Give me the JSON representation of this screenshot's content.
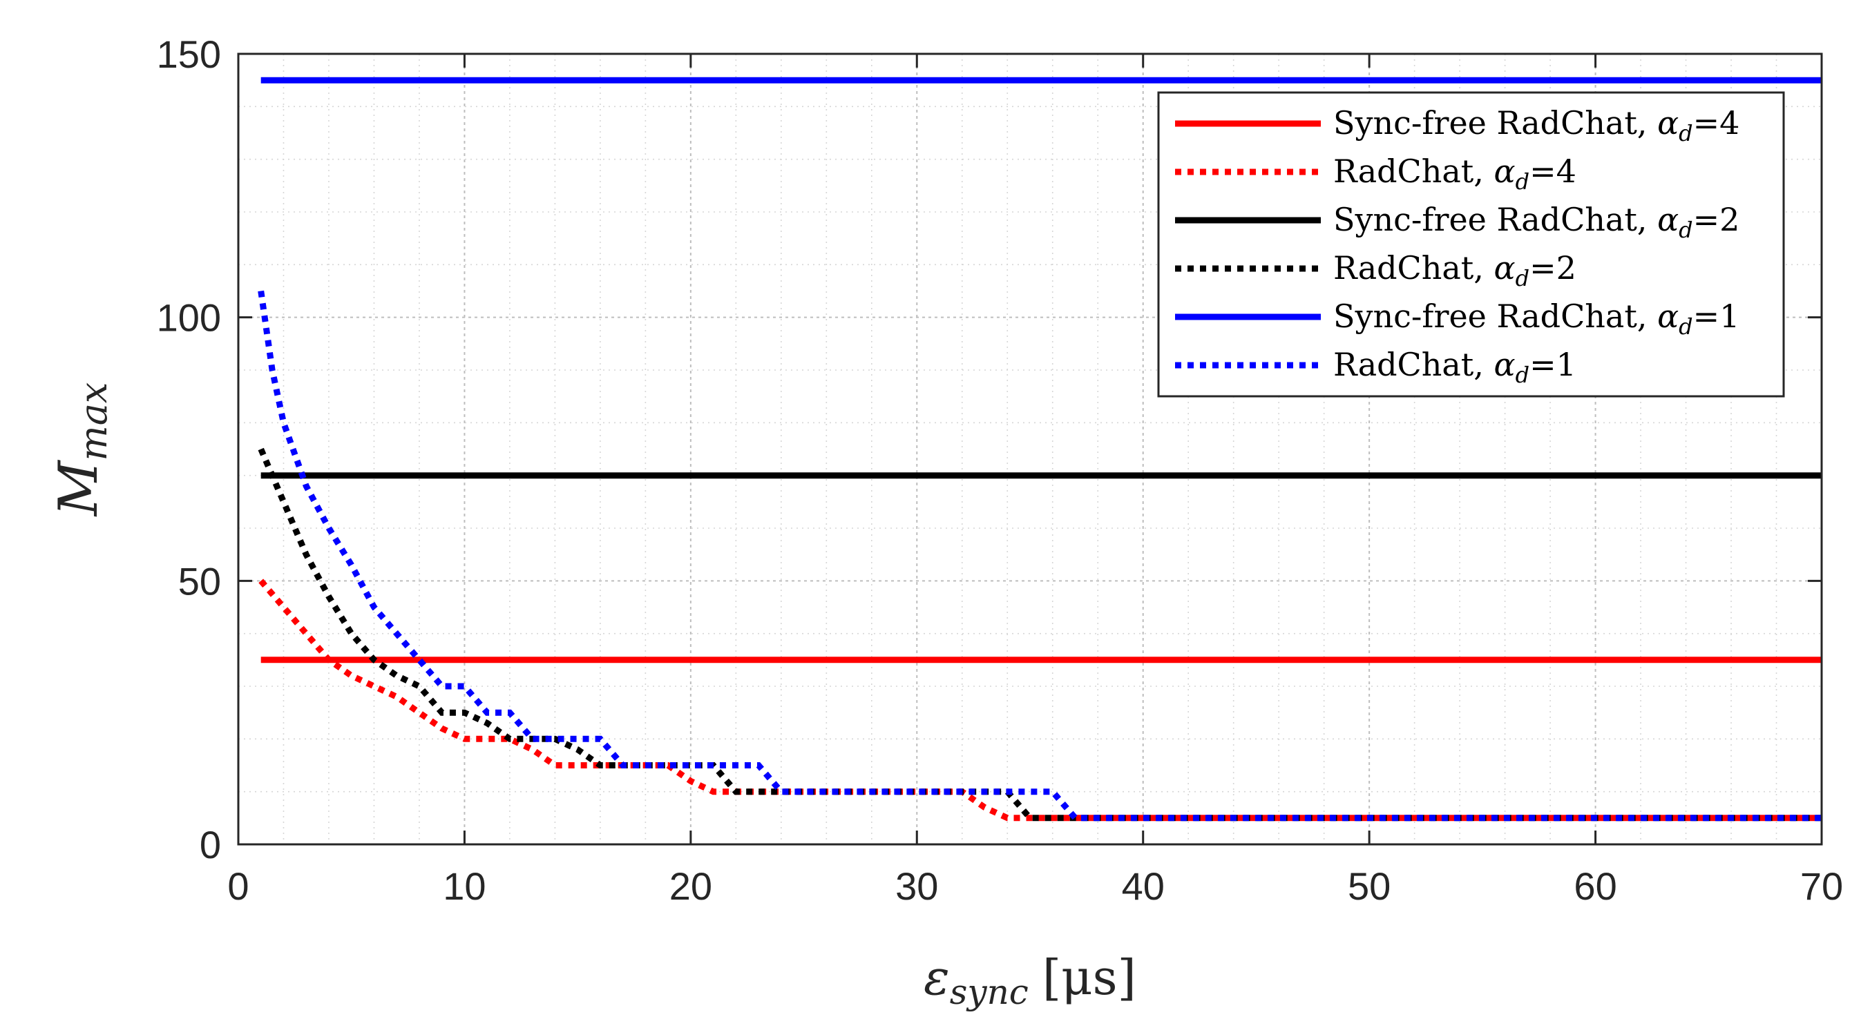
{
  "chart_data": {
    "type": "line",
    "title": "",
    "xlabel": {
      "main": "ε",
      "sub": "sync",
      "unit": "[μs]"
    },
    "ylabel": {
      "main": "M",
      "sub": "max"
    },
    "xlim": [
      0,
      70
    ],
    "ylim": [
      0,
      150
    ],
    "xticks": [
      0,
      10,
      20,
      30,
      40,
      50,
      60,
      70
    ],
    "yticks": [
      0,
      50,
      100,
      150
    ],
    "grid": true,
    "minor_grid": true,
    "legend_position": "top-right",
    "series": [
      {
        "name": "Sync-free RadChat, αd=4",
        "label_main": "Sync-free RadChat, ",
        "label_sym": "α",
        "label_sub": "d",
        "label_eq": "=4",
        "color": "#ff0000",
        "style": "solid",
        "x": [
          1,
          70
        ],
        "y": [
          35,
          35
        ]
      },
      {
        "name": "RadChat, αd=4",
        "label_main": "RadChat, ",
        "label_sym": "α",
        "label_sub": "d",
        "label_eq": "=4",
        "color": "#ff0000",
        "style": "dotted",
        "x": [
          1,
          2,
          3,
          4,
          5,
          6,
          7,
          8,
          9,
          10,
          11,
          12,
          13,
          14,
          15,
          16,
          17,
          18,
          19,
          20,
          21,
          22,
          23,
          24,
          25,
          26,
          27,
          28,
          29,
          30,
          31,
          32,
          33,
          34,
          35,
          36,
          37,
          38,
          40,
          45,
          50,
          55,
          60,
          65,
          70
        ],
        "y": [
          50,
          45,
          40,
          35,
          32,
          30,
          28,
          25,
          22,
          20,
          20,
          20,
          18,
          15,
          15,
          15,
          15,
          15,
          15,
          12,
          10,
          10,
          10,
          10,
          10,
          10,
          10,
          10,
          10,
          10,
          10,
          10,
          7,
          5,
          5,
          5,
          5,
          5,
          5,
          5,
          5,
          5,
          5,
          5,
          5
        ]
      },
      {
        "name": "Sync-free RadChat, αd=2",
        "label_main": "Sync-free RadChat, ",
        "label_sym": "α",
        "label_sub": "d",
        "label_eq": "=2",
        "color": "#000000",
        "style": "solid",
        "x": [
          1,
          70
        ],
        "y": [
          70,
          70
        ]
      },
      {
        "name": "RadChat, αd=2",
        "label_main": "RadChat, ",
        "label_sym": "α",
        "label_sub": "d",
        "label_eq": "=2",
        "color": "#000000",
        "style": "dotted",
        "x": [
          1,
          2,
          3,
          4,
          5,
          6,
          7,
          8,
          9,
          10,
          11,
          12,
          13,
          14,
          15,
          16,
          17,
          18,
          19,
          20,
          21,
          22,
          23,
          24,
          25,
          26,
          27,
          28,
          29,
          30,
          31,
          32,
          33,
          34,
          35,
          36,
          37,
          38,
          40,
          45,
          50,
          55,
          60,
          65,
          70
        ],
        "y": [
          75,
          65,
          55,
          47,
          40,
          35,
          32,
          30,
          25,
          25,
          23,
          20,
          20,
          20,
          18,
          15,
          15,
          15,
          15,
          15,
          15,
          10,
          10,
          10,
          10,
          10,
          10,
          10,
          10,
          10,
          10,
          10,
          10,
          10,
          5,
          5,
          5,
          5,
          5,
          5,
          5,
          5,
          5,
          5,
          5
        ]
      },
      {
        "name": "Sync-free RadChat, αd=1",
        "label_main": "Sync-free RadChat, ",
        "label_sym": "α",
        "label_sub": "d",
        "label_eq": "=1",
        "color": "#0000ff",
        "style": "solid",
        "x": [
          1,
          70
        ],
        "y": [
          145,
          145
        ]
      },
      {
        "name": "RadChat, αd=1",
        "label_main": "RadChat, ",
        "label_sym": "α",
        "label_sub": "d",
        "label_eq": "=1",
        "color": "#0000ff",
        "style": "dotted",
        "x": [
          1,
          1.5,
          2,
          3,
          4,
          5,
          6,
          7,
          8,
          9,
          10,
          11,
          12,
          13,
          14,
          15,
          16,
          17,
          18,
          19,
          20,
          21,
          22,
          23,
          24,
          25,
          26,
          27,
          28,
          29,
          30,
          31,
          32,
          33,
          34,
          35,
          36,
          37,
          38,
          40,
          45,
          50,
          55,
          60,
          65,
          70
        ],
        "y": [
          105,
          90,
          80,
          68,
          60,
          53,
          45,
          40,
          35,
          30,
          30,
          25,
          25,
          20,
          20,
          20,
          20,
          15,
          15,
          15,
          15,
          15,
          15,
          15,
          10,
          10,
          10,
          10,
          10,
          10,
          10,
          10,
          10,
          10,
          10,
          10,
          10,
          5,
          5,
          5,
          5,
          5,
          5,
          5,
          5,
          5
        ]
      }
    ]
  }
}
